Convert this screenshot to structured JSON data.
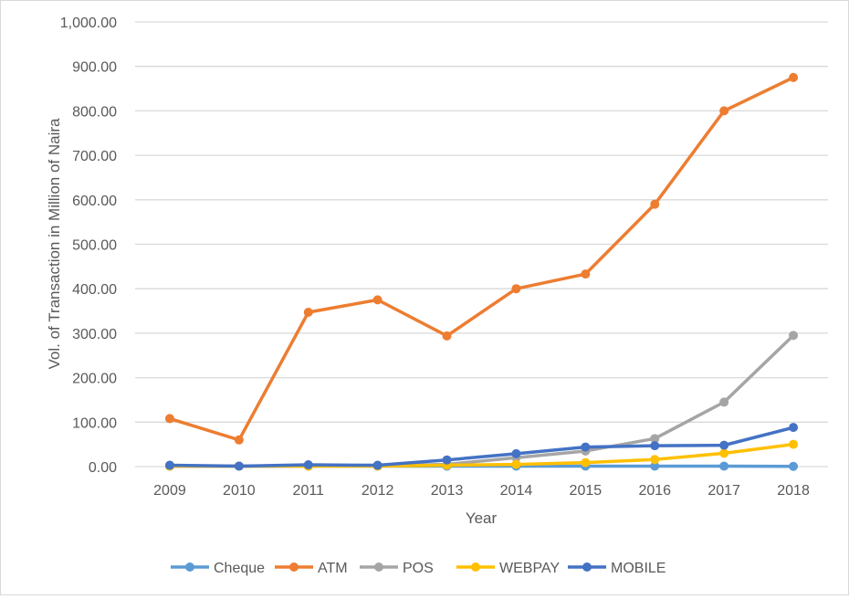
{
  "chart_data": {
    "type": "line",
    "title": "",
    "xlabel": "Year",
    "ylabel": "Vol. of Transaction in Million of Naira",
    "ylim": [
      0,
      1000
    ],
    "yticks": [
      0,
      100,
      200,
      300,
      400,
      500,
      600,
      700,
      800,
      900,
      1000
    ],
    "ytick_labels": [
      "0.00",
      "100.00",
      "200.00",
      "300.00",
      "400.00",
      "500.00",
      "600.00",
      "700.00",
      "800.00",
      "900.00",
      "1,000.00"
    ],
    "categories": [
      "2009",
      "2010",
      "2011",
      "2012",
      "2013",
      "2014",
      "2015",
      "2016",
      "2017",
      "2018"
    ],
    "grid": true,
    "legend_position": "bottom",
    "series": [
      {
        "name": "Cheque",
        "color": "#5b9bd5",
        "values": [
          1,
          1,
          1,
          1,
          1,
          1,
          1,
          1,
          1,
          0.5
        ]
      },
      {
        "name": "ATM",
        "color": "#ed7d31",
        "values": [
          108,
          60,
          347,
          375,
          294,
          400,
          433,
          590,
          800,
          875
        ]
      },
      {
        "name": "POS",
        "color": "#a5a5a5",
        "values": [
          1,
          1,
          1,
          2,
          5,
          20,
          35,
          63,
          145,
          295
        ]
      },
      {
        "name": "WEBPAY",
        "color": "#ffc000",
        "values": [
          1,
          1,
          1,
          1,
          3,
          5,
          9,
          16,
          30,
          50
        ]
      },
      {
        "name": "MOBILE",
        "color": "#4472c4",
        "values": [
          3,
          1,
          4,
          3,
          15,
          29,
          44,
          47,
          48,
          88
        ]
      }
    ]
  }
}
